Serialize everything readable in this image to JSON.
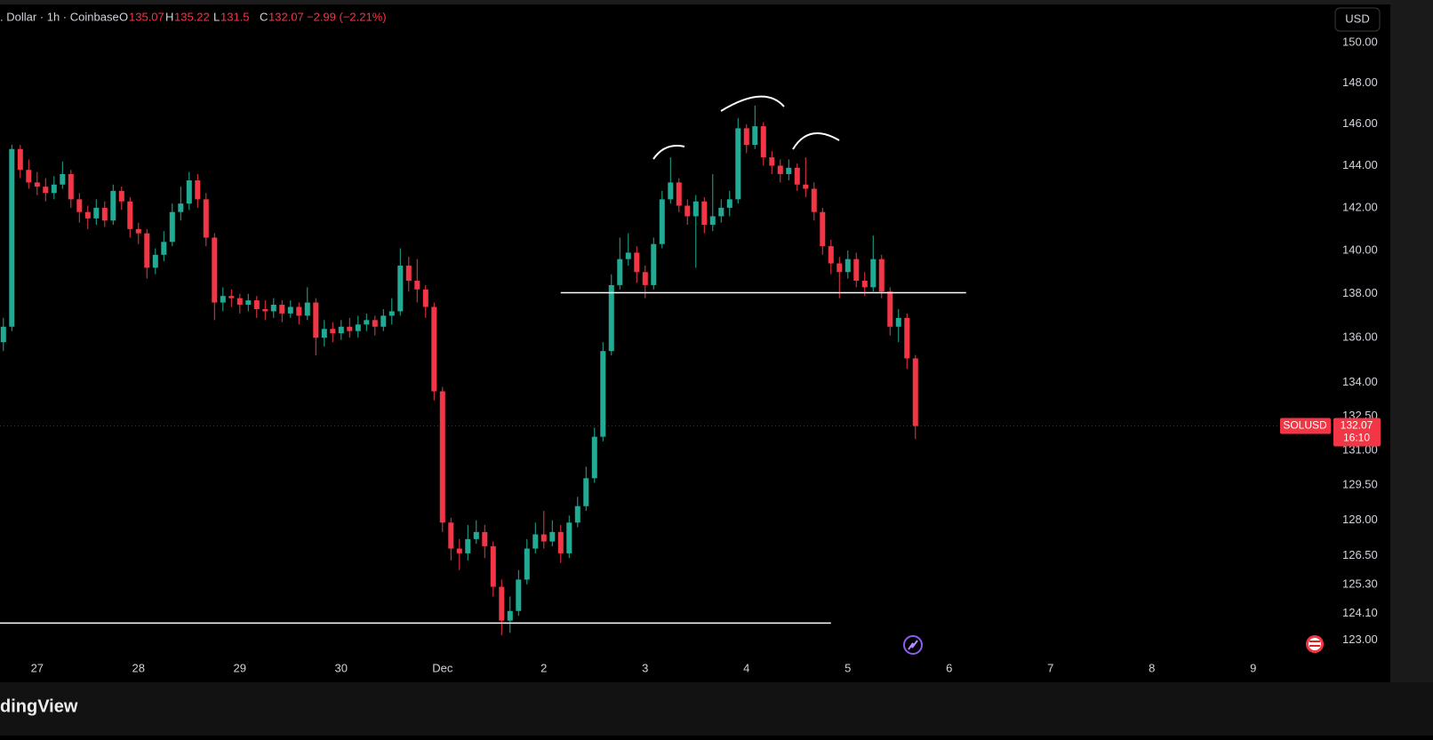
{
  "chart_data": {
    "type": "candlestick",
    "header": {
      "description": ". Dollar · 1h · Coinbase",
      "open_label": "O",
      "high_label": "H",
      "low_label": "L",
      "close_label": "C",
      "change": "−2.99 (−2.21%)"
    },
    "currency_button": "USD",
    "symbol_tag": "SOLUSD",
    "countdown": "16:10",
    "watermark": "dingView",
    "log_scale": true,
    "up_color": "#22ab94",
    "down_color": "#f23645",
    "x": [
      -8,
      -6,
      -4,
      -2,
      0,
      2,
      4,
      6,
      8,
      10,
      12,
      14,
      16,
      18,
      20,
      22,
      24,
      26,
      28,
      30,
      32,
      34,
      36,
      38,
      40,
      42,
      44,
      46,
      48,
      50,
      52,
      54,
      56,
      58,
      60,
      62,
      64,
      66,
      68,
      70,
      72,
      74,
      76,
      78,
      80,
      82,
      84,
      86,
      88,
      90,
      92,
      94,
      96,
      98,
      100,
      102,
      104,
      106,
      108,
      110,
      112,
      114,
      116,
      118,
      120,
      122,
      124,
      126,
      128,
      130,
      132,
      134,
      136,
      138,
      140,
      142,
      144,
      146,
      148,
      150,
      152,
      154,
      156,
      158,
      160,
      162,
      164,
      166,
      168,
      170,
      172,
      174,
      176,
      178,
      180,
      182,
      184,
      186,
      188,
      190,
      192,
      194,
      196,
      198,
      200,
      202,
      204,
      206,
      208
    ],
    "open": [
      135.8,
      136.5,
      144.8,
      143.8,
      143.2,
      143.0,
      142.7,
      143.1,
      143.6,
      142.4,
      141.8,
      141.5,
      142.0,
      141.4,
      142.8,
      142.3,
      141.0,
      140.8,
      139.2,
      139.8,
      140.4,
      141.8,
      142.2,
      143.3,
      142.4,
      140.6,
      137.6,
      137.9,
      137.8,
      137.5,
      137.7,
      137.3,
      137.2,
      137.5,
      137.1,
      137.4,
      137.0,
      137.6,
      136.0,
      136.4,
      136.2,
      136.5,
      136.3,
      136.6,
      136.8,
      136.5,
      137.0,
      137.2,
      139.3,
      138.6,
      138.2,
      137.4,
      133.6,
      127.9,
      126.8,
      126.6,
      127.2,
      127.5,
      126.9,
      125.2,
      123.8,
      124.2,
      125.5,
      126.8,
      127.4,
      127.1,
      127.5,
      126.6,
      127.9,
      128.6,
      129.8,
      131.6,
      135.4,
      138.4,
      139.6,
      139.9,
      139.0,
      138.4,
      140.3,
      142.4,
      143.2,
      142.1,
      141.6,
      142.3,
      141.2,
      141.6,
      142.0,
      142.4,
      145.8,
      145.0,
      145.9,
      144.4,
      144.0,
      143.6,
      143.9,
      143.1,
      142.9,
      141.8,
      140.2,
      139.4,
      139.0,
      139.6,
      138.6,
      138.3,
      139.6,
      138.1,
      136.5,
      136.9,
      135.07
    ],
    "high": [
      136.9,
      145.0,
      145.0,
      144.3,
      143.7,
      143.4,
      143.5,
      144.2,
      143.8,
      142.7,
      142.1,
      142.4,
      142.3,
      143.1,
      143.0,
      142.5,
      141.3,
      141.0,
      140.1,
      140.9,
      142.2,
      143.0,
      143.7,
      143.6,
      142.7,
      140.8,
      138.3,
      138.2,
      138.0,
      138.0,
      137.9,
      137.7,
      137.8,
      137.7,
      137.7,
      137.6,
      138.3,
      137.8,
      136.8,
      136.7,
      136.8,
      136.9,
      137.0,
      137.1,
      137.0,
      137.3,
      137.8,
      140.1,
      139.7,
      139.6,
      138.4,
      137.6,
      133.8,
      128.1,
      127.2,
      127.8,
      128.0,
      127.8,
      127.1,
      125.5,
      124.8,
      125.9,
      127.2,
      127.9,
      128.4,
      128.0,
      127.8,
      128.2,
      129.0,
      130.3,
      132.0,
      135.8,
      138.9,
      140.6,
      140.8,
      140.2,
      139.3,
      140.6,
      142.8,
      144.4,
      143.4,
      142.4,
      142.6,
      142.5,
      143.6,
      142.4,
      142.8,
      146.3,
      146.0,
      146.9,
      146.1,
      144.7,
      144.3,
      144.3,
      144.1,
      144.4,
      143.2,
      142.0,
      140.5,
      139.7,
      140.0,
      139.9,
      139.0,
      140.7,
      139.8,
      138.3,
      137.3,
      137.1,
      135.22
    ],
    "low": [
      135.4,
      136.3,
      143.4,
      142.9,
      142.6,
      142.3,
      142.4,
      142.9,
      142.0,
      141.3,
      141.0,
      141.2,
      141.1,
      141.2,
      141.9,
      140.6,
      140.3,
      138.7,
      138.9,
      139.5,
      140.2,
      141.4,
      141.9,
      142.0,
      140.2,
      136.8,
      137.2,
      137.4,
      137.1,
      137.2,
      136.9,
      136.8,
      136.9,
      136.7,
      136.9,
      136.6,
      136.8,
      135.2,
      135.6,
      135.8,
      135.9,
      136.0,
      136.0,
      136.3,
      136.1,
      136.3,
      136.6,
      137.0,
      138.1,
      137.6,
      136.9,
      133.2,
      127.5,
      126.3,
      125.9,
      126.3,
      127.0,
      126.4,
      124.8,
      123.2,
      123.3,
      124.0,
      125.3,
      126.6,
      126.8,
      126.9,
      126.2,
      126.4,
      127.7,
      128.4,
      129.6,
      131.4,
      135.2,
      138.2,
      139.3,
      138.5,
      137.8,
      138.2,
      140.1,
      142.2,
      141.8,
      141.2,
      139.2,
      140.8,
      140.9,
      141.3,
      141.6,
      142.2,
      144.6,
      144.8,
      144.0,
      143.6,
      143.2,
      143.3,
      142.8,
      142.5,
      141.4,
      139.8,
      138.9,
      137.8,
      138.7,
      138.3,
      137.9,
      138.1,
      137.8,
      136.1,
      135.8,
      134.6,
      131.5
    ],
    "close": [
      136.5,
      144.8,
      143.8,
      143.2,
      143.0,
      142.7,
      143.1,
      143.6,
      142.4,
      141.8,
      141.5,
      142.0,
      141.4,
      142.8,
      142.3,
      141.0,
      140.8,
      139.2,
      139.8,
      140.4,
      141.8,
      142.2,
      143.3,
      142.4,
      140.6,
      137.6,
      137.9,
      137.8,
      137.5,
      137.7,
      137.3,
      137.2,
      137.5,
      137.1,
      137.4,
      137.0,
      137.6,
      136.0,
      136.4,
      136.2,
      136.5,
      136.3,
      136.6,
      136.8,
      136.5,
      137.0,
      137.2,
      139.3,
      138.6,
      138.2,
      137.4,
      133.6,
      127.9,
      126.8,
      126.6,
      127.2,
      127.5,
      126.9,
      125.2,
      123.8,
      124.2,
      125.5,
      126.8,
      127.4,
      127.1,
      127.5,
      126.6,
      127.9,
      128.6,
      129.8,
      131.6,
      135.4,
      138.4,
      139.6,
      139.9,
      139.0,
      138.4,
      140.3,
      142.4,
      143.2,
      142.1,
      141.6,
      142.3,
      141.2,
      141.6,
      142.0,
      142.4,
      145.8,
      145.0,
      145.9,
      144.4,
      144.0,
      143.6,
      143.9,
      143.1,
      142.9,
      141.8,
      140.2,
      139.4,
      139.0,
      139.6,
      138.6,
      138.3,
      139.6,
      138.1,
      136.5,
      136.9,
      135.07,
      132.07
    ],
    "hlines": [
      {
        "value": 138.05,
        "x": [
          124,
          220
        ]
      },
      {
        "value": 123.7,
        "x": [
          -9,
          188
        ]
      }
    ],
    "xlim": [
      -8.8,
      307
    ],
    "ylim": [
      121.4,
      151.7
    ],
    "xticks": [
      {
        "value": 0,
        "label": "27"
      },
      {
        "value": 24,
        "label": "28"
      },
      {
        "value": 48,
        "label": "29"
      },
      {
        "value": 72,
        "label": "30"
      },
      {
        "value": 96,
        "label": "Dec"
      },
      {
        "value": 120,
        "label": "2"
      },
      {
        "value": 144,
        "label": "3"
      },
      {
        "value": 168,
        "label": "4"
      },
      {
        "value": 192,
        "label": "5"
      },
      {
        "value": 216,
        "label": "6"
      },
      {
        "value": 240,
        "label": "7"
      },
      {
        "value": 264,
        "label": "8"
      },
      {
        "value": 288,
        "label": "9"
      }
    ],
    "yticks": [
      {
        "value": 150,
        "label": "150.00"
      },
      {
        "value": 148,
        "label": "148.00"
      },
      {
        "value": 146,
        "label": "146.00"
      },
      {
        "value": 144,
        "label": "144.00"
      },
      {
        "value": 142,
        "label": "142.00"
      },
      {
        "value": 140,
        "label": "140.00"
      },
      {
        "value": 138,
        "label": "138.00"
      },
      {
        "value": 136,
        "label": "136.00"
      },
      {
        "value": 134,
        "label": "134.00"
      },
      {
        "value": 132.5,
        "label": "132.50"
      },
      {
        "value": 131,
        "label": "131.00"
      },
      {
        "value": 129.5,
        "label": "129.50"
      },
      {
        "value": 128,
        "label": "128.00"
      },
      {
        "value": 126.5,
        "label": "126.50"
      },
      {
        "value": 125.3,
        "label": "125.30"
      },
      {
        "value": 124.1,
        "label": "124.10"
      },
      {
        "value": 123,
        "label": "123.00"
      }
    ]
  }
}
